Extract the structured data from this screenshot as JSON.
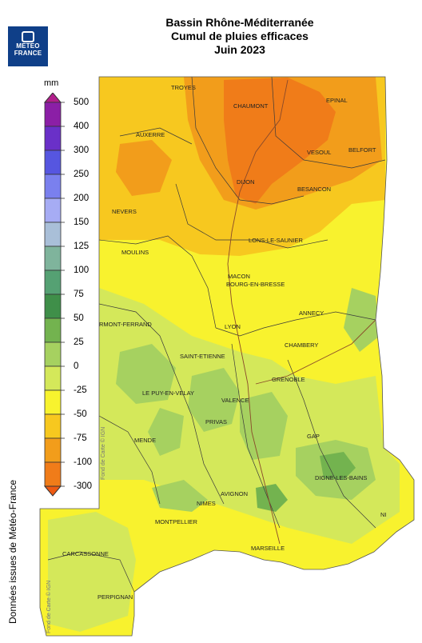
{
  "titles": {
    "line1": "Bassin Rhône-Méditerranée",
    "line2": "Cumul de pluies efficaces",
    "line3": "Juin 2023"
  },
  "logo": {
    "line1": "METEO",
    "line2": "FRANCE"
  },
  "legend": {
    "unit": "mm",
    "ticks": [
      "500",
      "400",
      "300",
      "250",
      "200",
      "150",
      "125",
      "100",
      "75",
      "50",
      "25",
      "0",
      "-25",
      "-50",
      "-75",
      "-100",
      "-300"
    ],
    "colors": [
      "#b21f8c",
      "#8b1fa6",
      "#6a30c8",
      "#5656e0",
      "#7a80ee",
      "#a6acf4",
      "#a9bfd8",
      "#7fb49c",
      "#55a173",
      "#3f8f49",
      "#73b34f",
      "#a6d160",
      "#d4e85a",
      "#f8f32e",
      "#f7c81f",
      "#f29d1b",
      "#f07c19",
      "#ee5a12"
    ]
  },
  "credit": "Données issues de Météo-France",
  "map_credit": "Fond de Carte © IGN",
  "cities": [
    "TROYES",
    "CHAUMONT",
    "EPINAL",
    "AUXERRE",
    "VESOUL",
    "BELFORT",
    "DIJON",
    "BESANCON",
    "NEVERS",
    "LONS-LE-SAUNIER",
    "MOULINS",
    "MACON",
    "BOURG-EN-BRESSE",
    "ANNECY",
    "RMONT-FERRAND",
    "LYON",
    "CHAMBERY",
    "SAINT-ETIENNE",
    "GRENOBLE",
    "LE PUY-EN-VELAY",
    "VALENCE",
    "PRIVAS",
    "GAP",
    "MENDE",
    "DIGNE-LES-BAINS",
    "NIMES",
    "AVIGNON",
    "NI",
    "MONTPELLIER",
    "CARCASSONNE",
    "MARSEILLE",
    "PERPIGNAN"
  ]
}
